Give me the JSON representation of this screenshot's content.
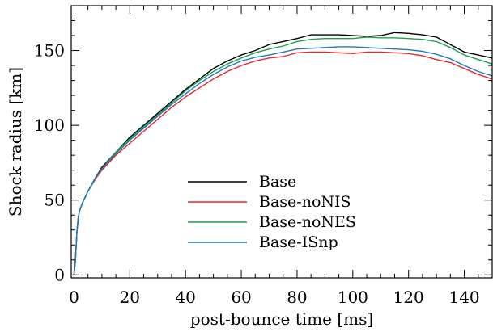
{
  "chart_data": {
    "type": "line",
    "title": "",
    "xlabel": "post-bounce time [ms]",
    "ylabel": "Shock radius [km]",
    "xlim": [
      -1,
      150
    ],
    "ylim": [
      -2,
      180
    ],
    "x_ticks": [
      0,
      20,
      40,
      60,
      80,
      100,
      120,
      140
    ],
    "y_ticks": [
      0,
      50,
      100,
      150
    ],
    "legend_position": "lower-center",
    "grid": false,
    "series": [
      {
        "name": "Base",
        "color": "#000000",
        "x": [
          0,
          0.5,
          1,
          1.5,
          2,
          3,
          5,
          8,
          10,
          15,
          20,
          25,
          30,
          35,
          40,
          45,
          50,
          55,
          60,
          65,
          70,
          75,
          80,
          85,
          90,
          95,
          100,
          105,
          110,
          115,
          120,
          125,
          130,
          135,
          140,
          145,
          150
        ],
        "y": [
          0,
          10,
          28,
          38,
          43,
          48,
          56,
          66,
          72,
          82,
          92,
          100,
          108,
          116,
          124,
          131,
          138,
          143,
          147,
          150,
          154,
          156,
          158,
          160.5,
          160.5,
          160.5,
          160,
          159.5,
          160,
          162,
          161.5,
          160.5,
          159,
          154,
          149,
          147,
          145
        ]
      },
      {
        "name": "Base-noNIS",
        "color": "#e8262a",
        "x": [
          0,
          0.5,
          1,
          1.5,
          2,
          3,
          5,
          8,
          10,
          15,
          20,
          25,
          30,
          35,
          40,
          45,
          50,
          55,
          60,
          65,
          70,
          75,
          80,
          85,
          90,
          95,
          100,
          105,
          110,
          115,
          120,
          125,
          130,
          135,
          140,
          145,
          150
        ],
        "y": [
          0,
          10,
          28,
          38,
          43,
          48,
          56,
          65,
          70,
          80,
          88,
          96,
          104,
          112,
          119,
          125,
          131,
          136,
          140,
          143,
          145,
          146,
          148.5,
          149,
          149,
          148.5,
          148,
          149,
          149,
          148.5,
          148,
          146.5,
          144,
          142,
          138,
          134,
          131
        ]
      },
      {
        "name": "Base-noNES",
        "color": "#1ca04a",
        "x": [
          0,
          0.5,
          1,
          1.5,
          2,
          3,
          5,
          8,
          10,
          15,
          20,
          25,
          30,
          35,
          40,
          45,
          50,
          55,
          60,
          65,
          70,
          75,
          80,
          85,
          90,
          95,
          100,
          105,
          110,
          115,
          120,
          125,
          130,
          135,
          140,
          145,
          150
        ],
        "y": [
          0,
          10,
          28,
          38,
          43,
          48,
          56,
          66,
          71,
          82,
          91,
          99,
          107,
          115,
          123,
          130,
          136,
          141,
          145,
          148.5,
          151,
          153,
          156,
          157.5,
          158,
          158,
          158,
          159,
          158.5,
          158.5,
          158,
          157.5,
          156,
          152,
          147,
          144,
          141
        ]
      },
      {
        "name": "Base-ISnp",
        "color": "#1f78c1",
        "x": [
          0,
          0.5,
          1,
          1.5,
          2,
          3,
          5,
          8,
          10,
          15,
          20,
          25,
          30,
          35,
          40,
          45,
          50,
          55,
          60,
          65,
          70,
          75,
          80,
          85,
          90,
          95,
          100,
          105,
          110,
          115,
          120,
          125,
          130,
          135,
          140,
          145,
          150
        ],
        "y": [
          0,
          10,
          28,
          38,
          43,
          48,
          56,
          66,
          71,
          81,
          90,
          98,
          106,
          114,
          121,
          128,
          134,
          139,
          143,
          145.5,
          147,
          149,
          151,
          151.5,
          152,
          152.5,
          152.5,
          152,
          151.5,
          151,
          150.5,
          149.5,
          147.5,
          144.5,
          140,
          136,
          133
        ]
      }
    ]
  }
}
